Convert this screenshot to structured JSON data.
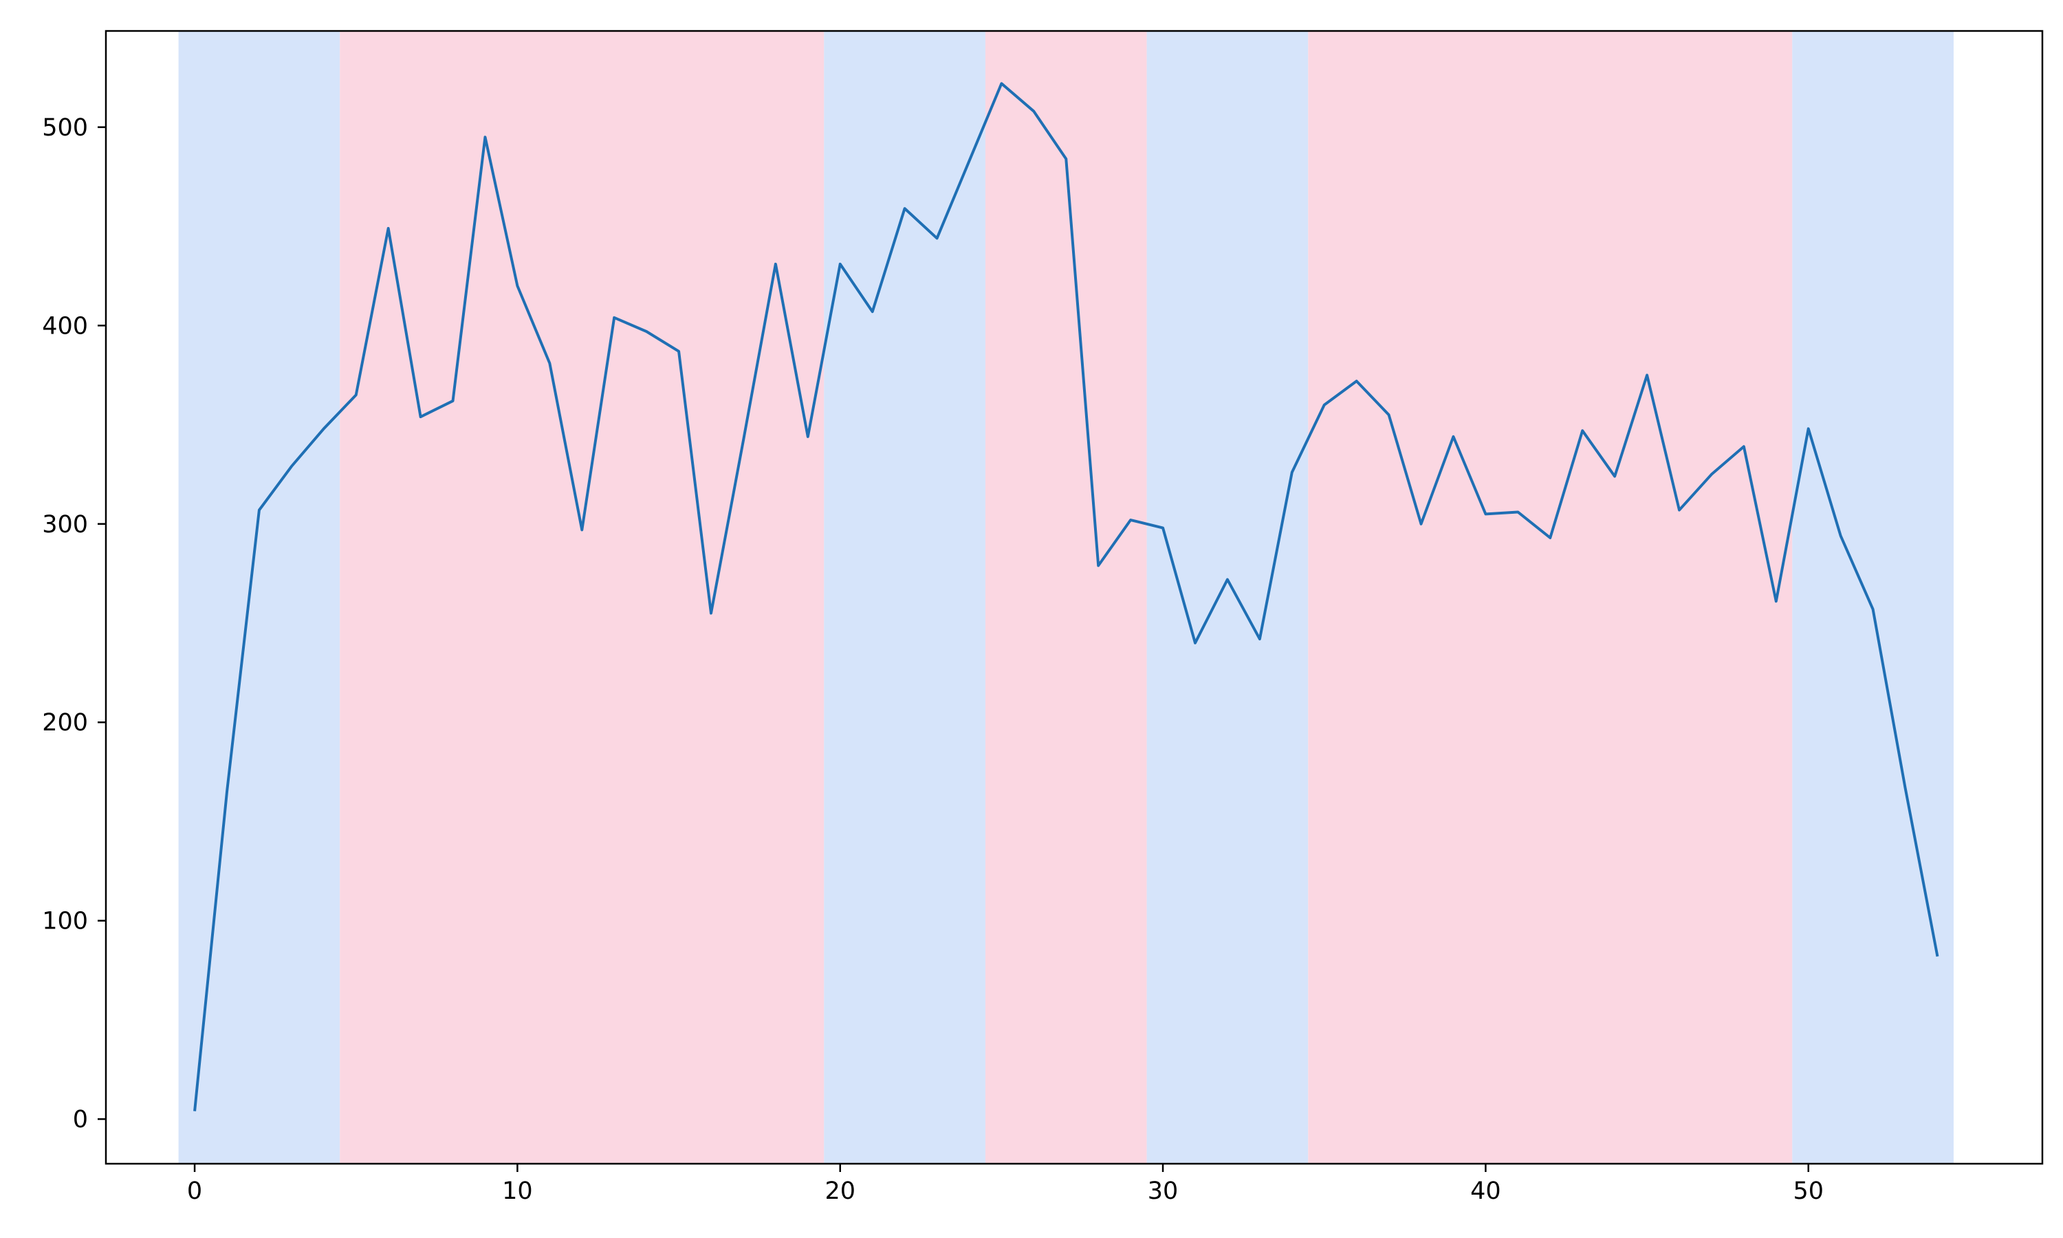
{
  "chart_data": {
    "type": "line",
    "title": "",
    "xlabel": "",
    "ylabel": "",
    "xlim": [
      -2.75,
      57.25
    ],
    "ylim": [
      -22.5,
      548.5
    ],
    "xticks": [
      0,
      10,
      20,
      30,
      40,
      50
    ],
    "yticks": [
      0,
      100,
      200,
      300,
      400,
      500
    ],
    "grid": false,
    "legend": "none",
    "bands": [
      {
        "from": -0.5,
        "to": 4.5,
        "color": "#d6e4fa"
      },
      {
        "from": 4.5,
        "to": 19.5,
        "color": "#fbd7e2"
      },
      {
        "from": 19.5,
        "to": 24.5,
        "color": "#d6e4fa"
      },
      {
        "from": 24.5,
        "to": 29.5,
        "color": "#fbd7e2"
      },
      {
        "from": 29.5,
        "to": 34.5,
        "color": "#d6e4fa"
      },
      {
        "from": 34.5,
        "to": 49.5,
        "color": "#fbd7e2"
      },
      {
        "from": 49.5,
        "to": 54.5,
        "color": "#d6e4fa"
      }
    ],
    "series": [
      {
        "color": "#1f6fb4",
        "x": [
          0,
          1,
          2,
          3,
          4,
          5,
          6,
          7,
          8,
          9,
          10,
          11,
          12,
          13,
          14,
          15,
          16,
          17,
          18,
          19,
          20,
          21,
          22,
          23,
          24,
          25,
          26,
          27,
          28,
          29,
          30,
          31,
          32,
          33,
          34,
          35,
          36,
          37,
          38,
          39,
          40,
          41,
          42,
          43,
          44,
          45,
          46,
          47,
          48,
          49,
          50,
          51,
          52,
          53,
          54
        ],
        "values": [
          4,
          165,
          307,
          329,
          348,
          365,
          449,
          354,
          362,
          495,
          420,
          381,
          297,
          404,
          397,
          387,
          255,
          342,
          431,
          344,
          431,
          407,
          459,
          444,
          483,
          522,
          508,
          484,
          279,
          302,
          298,
          240,
          272,
          242,
          326,
          360,
          372,
          355,
          300,
          344,
          305,
          306,
          293,
          347,
          324,
          375,
          307,
          325,
          339,
          261,
          348,
          294,
          257,
          167,
          82
        ]
      }
    ]
  }
}
